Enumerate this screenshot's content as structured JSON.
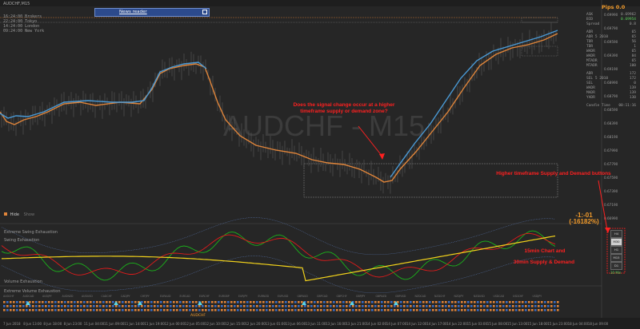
{
  "window": {
    "title": "AUDCHF,M15",
    "watermark": "AUDCHF - M15",
    "pips_label": "Pips 0.0"
  },
  "news_reader": {
    "label": "News reader"
  },
  "sessions": [
    {
      "time": "16:24:00",
      "name": "Brokers"
    },
    {
      "time": "22:24:00",
      "name": "Tokyo"
    },
    {
      "time": "14:24:00",
      "name": "London"
    },
    {
      "time": "09:24:00",
      "name": "New York"
    }
  ],
  "side_panel": {
    "rows": [
      {
        "label": "ASK",
        "value": "0.69962"
      },
      {
        "label": "BID",
        "value": "0.69954"
      },
      {
        "label": "Spread",
        "value": "0.8"
      },
      {
        "label": "ADR",
        "value": "65"
      },
      {
        "label": "ADR 5 2010",
        "value": "65"
      },
      {
        "label": "TDR",
        "value": "56"
      },
      {
        "label": "TDR",
        "value": "1"
      },
      {
        "label": "WADR",
        "value": "65"
      },
      {
        "label": "WADR",
        "value": "84"
      },
      {
        "label": "MTADR",
        "value": "65"
      },
      {
        "label": "MTADR",
        "value": "100"
      },
      {
        "label": "ADR",
        "value": "172"
      },
      {
        "label": "SEL 5 2010",
        "value": "172"
      },
      {
        "label": "SEL",
        "value": "0"
      },
      {
        "label": "WADR",
        "value": "139"
      },
      {
        "label": "MADR",
        "value": "139"
      },
      {
        "label": "YADR",
        "value": "130"
      },
      {
        "label": "Candle Time",
        "value": "00:11:16"
      }
    ]
  },
  "price_axis": [
    "0.69990",
    "0.69790",
    "0.69590",
    "0.69390",
    "0.69190",
    "0.68990",
    "0.68790",
    "0.68590",
    "0.68390",
    "0.68190",
    "0.67990",
    "0.67790",
    "0.67590",
    "0.67390",
    "0.67190",
    "0.66990"
  ],
  "time_axis": [
    "7 Jun 2018",
    "8 Jun 13:00",
    "8 Jun 18:00",
    "8 Jun 23:00",
    "11 Jun 04:00",
    "11 Jun 09:00",
    "11 Jun 14:00",
    "11 Jun 19:00",
    "12 Jun 00:00",
    "12 Jun 05:00",
    "12 Jun 10:00",
    "12 Jun 15:00",
    "12 Jun 20:00",
    "13 Jun 01:00",
    "13 Jun 06:00",
    "13 Jun 11:00",
    "13 Jun 16:00",
    "13 Jun 21:00",
    "14 Jun 02:00",
    "14 Jun 07:00",
    "14 Jun 12:00",
    "14 Jun 17:00",
    "14 Jun 22:00",
    "15 Jun 03:00",
    "15 Jun 08:00",
    "15 Jun 13:00",
    "15 Jun 18:00",
    "15 Jun 23:00",
    "18 Jun 04:00",
    "18 Jun 09:00"
  ],
  "annotations": {
    "question": "Does the signal change occur at a higher timeframe supply or demand zone?",
    "htf_buttons": "Higher timeframe Supply and Demand buttons",
    "counter": "-1:-01 (-16182%)",
    "chart_note_1": "15min Chart and",
    "chart_note_2": "30min Supply & Demand"
  },
  "hide_toggle": {
    "hide": "Hide",
    "show": "Show"
  },
  "indicator_labels": {
    "swing1": "Extreme Swing Exhaustion",
    "swing2": "Swing Exhaustion",
    "vol1": "Volume Exhaustion",
    "vol2": "Extreme Volume Exhaustion"
  },
  "timeframe_buttons": [
    {
      "label": "H4",
      "selected": false
    },
    {
      "label": "M30",
      "selected": true
    },
    {
      "label": "H1",
      "selected": false
    },
    {
      "label": "M15",
      "selected": false
    },
    {
      "label": "D1",
      "selected": false
    }
  ],
  "timeframe_caption": "30 Min",
  "symbols_strip": [
    "AUDCHF",
    "AUDCAD",
    "AUDJPY",
    "AUDNZD",
    "AUDUSD",
    "CADCHF",
    "CADJPY",
    "CHFJPY",
    "EURAUD",
    "EURCAD",
    "EURCHF",
    "EURGBP",
    "EURJPY",
    "EURNZD",
    "EURUSD",
    "GBPAUD",
    "GBPCAD",
    "GBPCHF",
    "GBPJPY",
    "GBPNZD",
    "GBPUSD",
    "NZDCAD",
    "NZDCHF",
    "NZDJPY",
    "NZDUSD",
    "USDCAD",
    "USDCHF",
    "USDJPY"
  ],
  "colors": {
    "background": "#262626",
    "fast_line": "#4a9ad6",
    "slow_line": "#e0853a",
    "annotation": "#ff2020",
    "osc_yellow": "#f2d21b",
    "osc_red": "#e01b1b",
    "osc_green": "#1bb31b"
  }
}
